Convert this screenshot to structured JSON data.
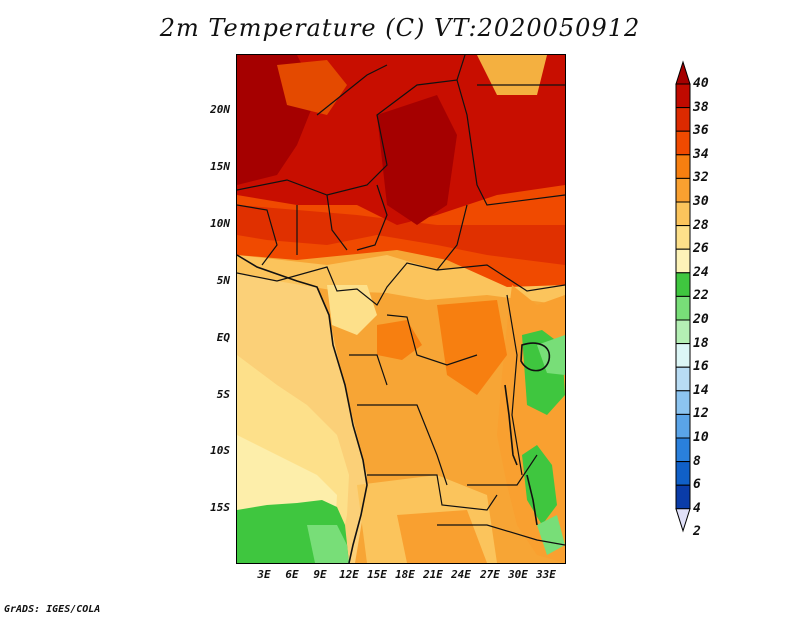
{
  "title": "2m Temperature (C) VT:2020050912",
  "footer": "GrADS: IGES/COLA",
  "map": {
    "lat_labels": [
      "20N",
      "15N",
      "10N",
      "5N",
      "EQ",
      "5S",
      "10S",
      "15S"
    ],
    "lon_labels": [
      "3E",
      "6E",
      "9E",
      "12E",
      "15E",
      "18E",
      "21E",
      "24E",
      "27E",
      "30E",
      "33E"
    ]
  },
  "colorbar": {
    "labels": [
      "40",
      "38",
      "36",
      "34",
      "32",
      "30",
      "28",
      "26",
      "24",
      "22",
      "20",
      "18",
      "16",
      "14",
      "12",
      "10",
      "8",
      "6",
      "4",
      "2"
    ],
    "colors": [
      "#a50000",
      "#c00a00",
      "#dc2a00",
      "#f04a00",
      "#f77f10",
      "#f9a030",
      "#fbc45c",
      "#fde08a",
      "#fdf3b8",
      "#3fc63f",
      "#78de78",
      "#b4efb4",
      "#dcf6f6",
      "#b8dcf4",
      "#8cc4f0",
      "#5aa4e8",
      "#2a80dc",
      "#1060c8",
      "#0a3ca8",
      "#081878"
    ]
  }
}
